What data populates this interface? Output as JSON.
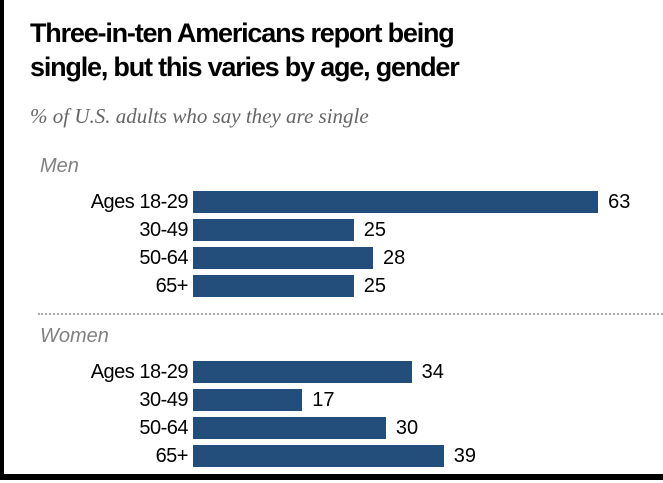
{
  "frame": {
    "border_color": "#000000",
    "background": "#ffffff"
  },
  "header": {
    "title": "Three-in-ten Americans report being single, but this varies by age, gender",
    "title_line1": "Three-in-ten Americans report being",
    "title_line2": "single, but this varies by age, gender",
    "subtitle": "% of U.S. adults who say they are single"
  },
  "chart_data": {
    "type": "bar",
    "orientation": "horizontal",
    "title": "Three-in-ten Americans report being single, but this varies by age, gender",
    "subtitle": "% of U.S. adults who say they are single",
    "unit": "percent",
    "categories": [
      "Ages 18-29",
      "30-49",
      "50-64",
      "65+"
    ],
    "series": [
      {
        "name": "Men",
        "values": [
          63,
          25,
          28,
          25
        ]
      },
      {
        "name": "Women",
        "values": [
          34,
          17,
          30,
          39
        ]
      }
    ],
    "xlim": [
      0,
      70
    ],
    "bar_color": "#234e7c",
    "label_color": "#000000",
    "group_label_color": "#818181",
    "value_labels": true,
    "grid": false,
    "legend": false
  }
}
